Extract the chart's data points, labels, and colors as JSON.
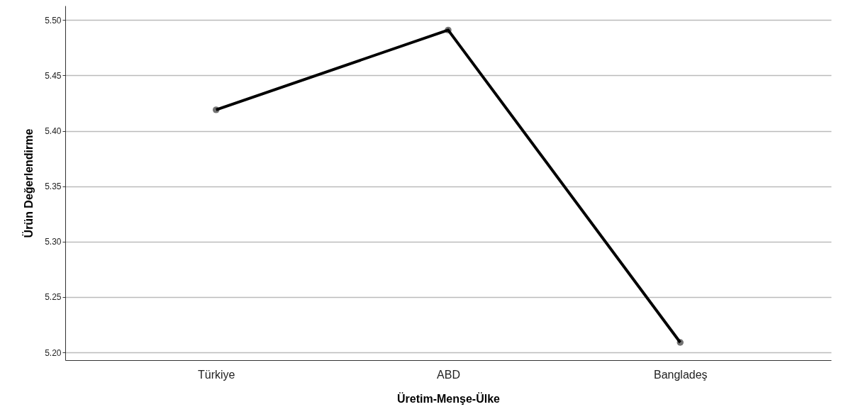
{
  "chart_data": {
    "type": "line",
    "xlabel": "Üretim-Menşe-Ülke",
    "ylabel": "Ürün Değerlendirme",
    "categories": [
      "Türkiye",
      "ABD",
      "Bangladeş"
    ],
    "series": [
      {
        "color": "#000000",
        "values": [
          5.419,
          5.491,
          5.209
        ]
      }
    ],
    "ylim": [
      5.193,
      5.513
    ],
    "yticks": [
      {
        "value": 5.2,
        "label": "5.20"
      },
      {
        "value": 5.25,
        "label": "5.25"
      },
      {
        "value": 5.3,
        "label": "5.30"
      },
      {
        "value": 5.35,
        "label": "5.35"
      },
      {
        "value": 5.4,
        "label": "5.40"
      },
      {
        "value": 5.45,
        "label": "5.45"
      },
      {
        "value": 5.5,
        "label": "5.50"
      }
    ],
    "grid": "y",
    "marker": "circle",
    "line_style": "solid"
  }
}
